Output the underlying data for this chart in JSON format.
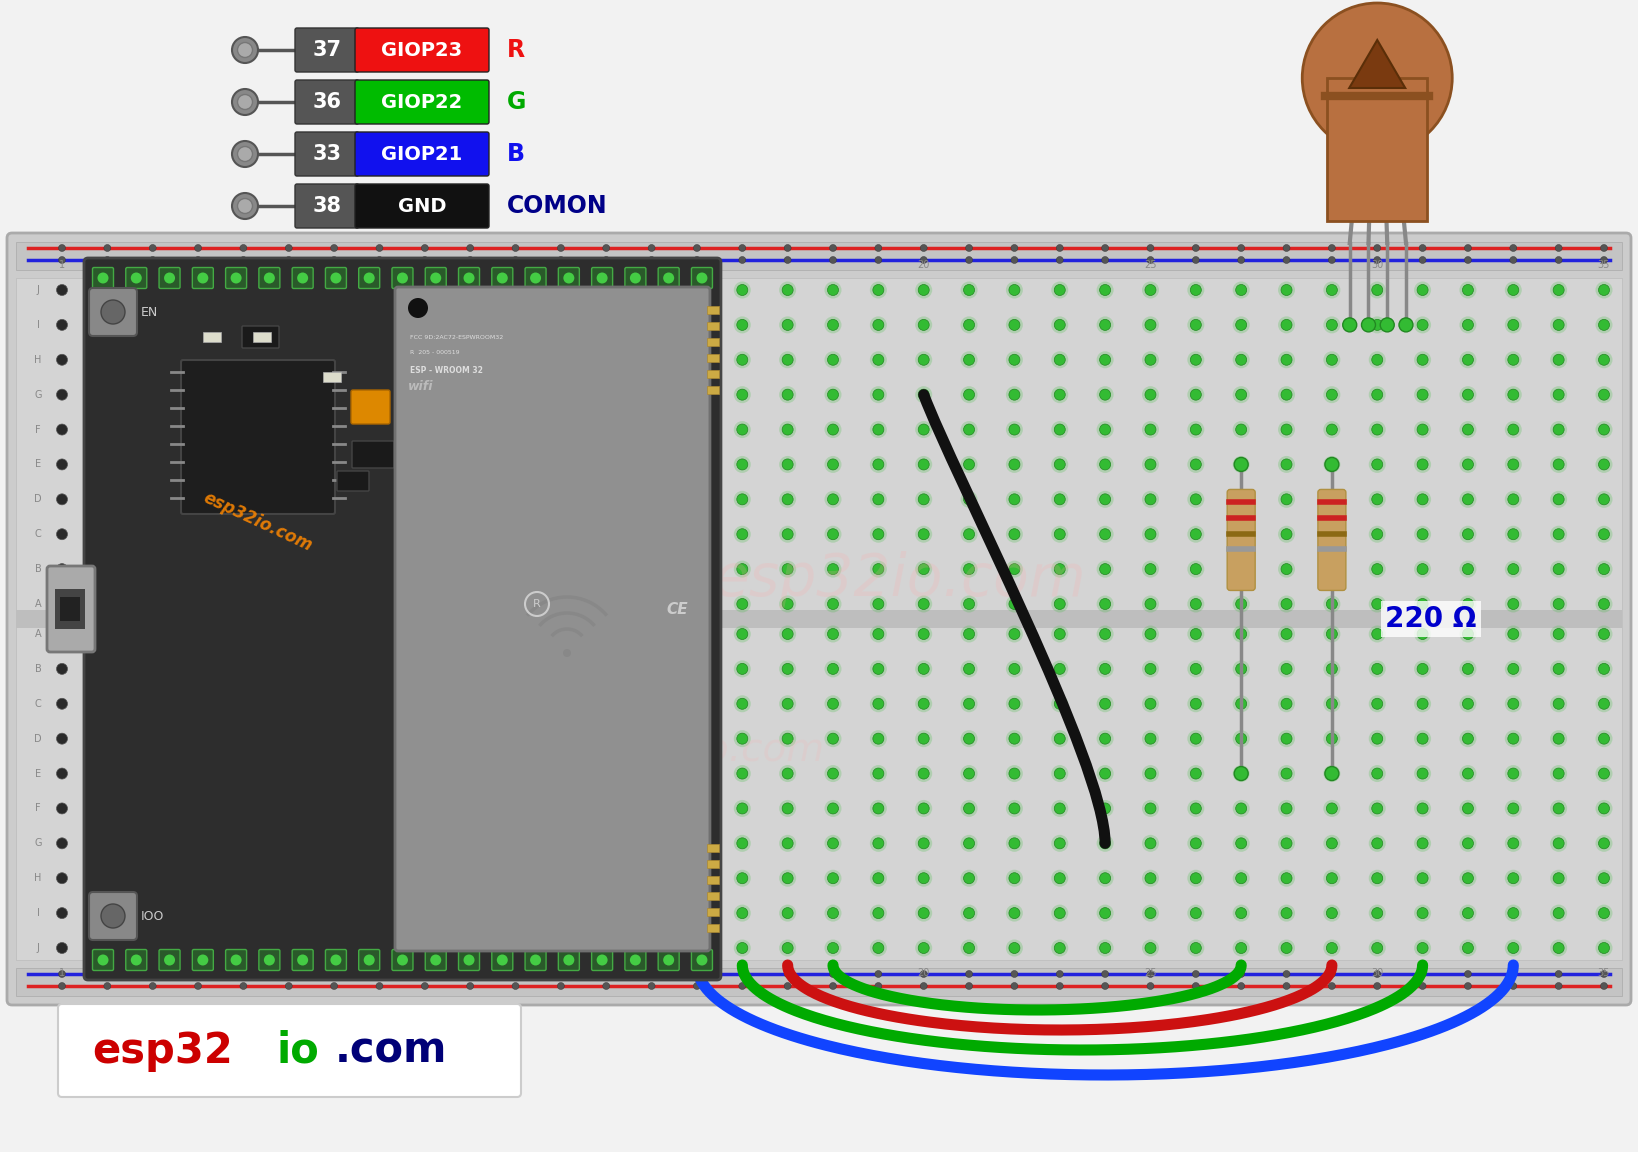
{
  "bg_color": "#f2f2f2",
  "bb_color": "#cccccc",
  "bb_border": "#aaaaaa",
  "hole_dark": "#2a2a2a",
  "hole_green": "#33bb33",
  "hole_glow": "#33bb33",
  "red_rail": "#dd2222",
  "blue_rail": "#2222dd",
  "esp_bg": "#2d2d2d",
  "esp_border": "#444444",
  "esp_pin_bg": "#2a5a2a",
  "esp_pin_dot": "#44cc44",
  "wifi_bg": "#909090",
  "wifi_border": "#707070",
  "usb_color": "#aaaaaa",
  "btn_color": "#888888",
  "chip_color": "#222222",
  "led_body": "#b87040",
  "led_dark": "#8b5020",
  "led_inner": "#7a3a10",
  "resistor_body": "#c8a060",
  "res_stripe1": "#cc2222",
  "res_stripe2": "#cc2222",
  "res_stripe3": "#8B6914",
  "res_stripe4": "#999999",
  "wire_black": "#111111",
  "wire_blue": "#1144ff",
  "wire_green": "#00aa00",
  "wire_red": "#cc1111",
  "watermark": "#ffaaaa",
  "logo_esp": "#cc0000",
  "logo_io": "#00aa00",
  "logo_com": "#000077",
  "omega_color": "#0000cc",
  "omega_label": "220 Ω",
  "pin_items": [
    {
      "num": "37",
      "name": "GIOP23",
      "box_color": "#ee1111",
      "letter": "R",
      "lc": "#ee1111"
    },
    {
      "num": "36",
      "name": "GIOP22",
      "box_color": "#00bb00",
      "letter": "G",
      "lc": "#00aa00"
    },
    {
      "num": "33",
      "name": "GIOP21",
      "box_color": "#1111ee",
      "letter": "B",
      "lc": "#1111ee"
    },
    {
      "num": "38",
      "name": "GND",
      "box_color": "#111111",
      "letter": "COMON",
      "lc": "#000088"
    }
  ]
}
